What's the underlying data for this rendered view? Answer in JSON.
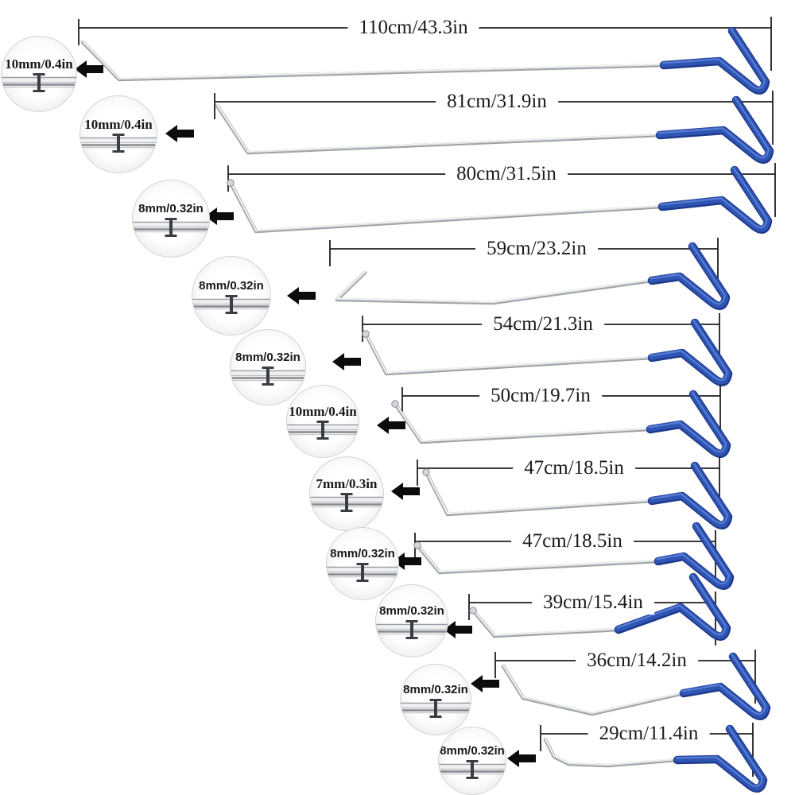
{
  "colors": {
    "handle_blue": "#2f55b5",
    "handle_blue_dark": "#1e3a8c",
    "steel_gray": "#9fa3a8",
    "annotation_black": "#1f1f1f"
  },
  "icons": {
    "arrow": "left-arrow-icon",
    "cross_section": "rod-cross-section-icon"
  },
  "rods": [
    {
      "length_label": "110cm/43.3in",
      "tip_diameter_label": "10mm/0.4in"
    },
    {
      "length_label": "81cm/31.9in",
      "tip_diameter_label": "10mm/0.4in"
    },
    {
      "length_label": "80cm/31.5in",
      "tip_diameter_label": "8mm/0.32in"
    },
    {
      "length_label": "59cm/23.2in",
      "tip_diameter_label": "8mm/0.32in"
    },
    {
      "length_label": "54cm/21.3in",
      "tip_diameter_label": "8mm/0.32in"
    },
    {
      "length_label": "50cm/19.7in",
      "tip_diameter_label": "10mm/0.4in"
    },
    {
      "length_label": "47cm/18.5in",
      "tip_diameter_label": "7mm/0.3in"
    },
    {
      "length_label": "47cm/18.5in",
      "tip_diameter_label": "8mm/0.32in"
    },
    {
      "length_label": "39cm/15.4in",
      "tip_diameter_label": "8mm/0.32in"
    },
    {
      "length_label": "36cm/14.2in",
      "tip_diameter_label": "8mm/0.32in"
    },
    {
      "length_label": "29cm/11.4in",
      "tip_diameter_label": "8mm/0.32in"
    }
  ]
}
